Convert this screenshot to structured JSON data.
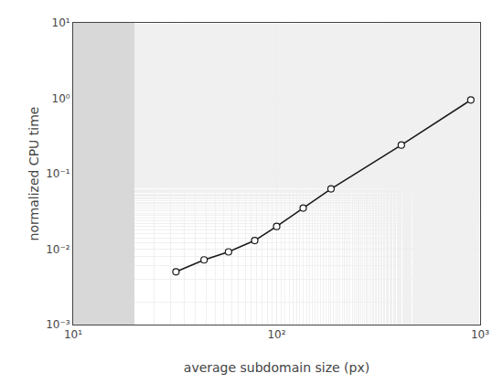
{
  "chart_data": {
    "type": "line",
    "x": [
      32,
      44,
      58,
      78,
      100,
      135,
      185,
      410,
      900
    ],
    "series": [
      {
        "values": [
          0.005,
          0.0072,
          0.0092,
          0.013,
          0.02,
          0.035,
          0.063,
          0.24,
          0.95
        ],
        "color": "#1a1a1a",
        "marker": "circle"
      }
    ],
    "xlabel": "average subdomain size (px)",
    "ylabel": "normalized CPU time",
    "log": true,
    "xlim": [
      10,
      1000
    ],
    "ylim": [
      0.001,
      10
    ],
    "xticks": [
      {
        "value": 10,
        "label": "10¹"
      },
      {
        "value": 100,
        "label": "10²"
      },
      {
        "value": 1000,
        "label": "10³"
      }
    ],
    "yticks": [
      {
        "value": 0.001,
        "label": "10⁻³"
      },
      {
        "value": 0.01,
        "label": "10⁻²"
      },
      {
        "value": 0.1,
        "label": "10⁻¹"
      },
      {
        "value": 1,
        "label": "10⁰"
      },
      {
        "value": 10,
        "label": "10¹"
      }
    ],
    "shaded_region": {
      "xmin": 10,
      "xmax": 20,
      "color": "#d8d8d8"
    },
    "grid": true
  }
}
